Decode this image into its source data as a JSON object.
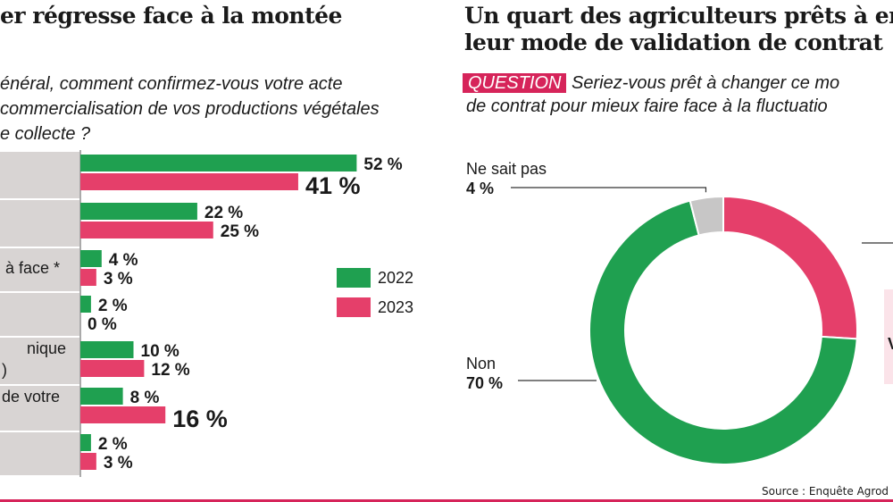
{
  "left_panel": {
    "title": "er régresse face à la montée",
    "question_lines": [
      "énéral, comment confirmez-vous votre acte",
      "commercialisation de vos productions végétales",
      "e collecte ?"
    ],
    "category_labels": [
      "",
      "",
      "à face *",
      "",
      "nique",
      ")",
      "de votre",
      ""
    ]
  },
  "right_panel": {
    "title_lines": [
      "Un quart des agriculteurs prêts à enco",
      "leur mode de validation de contrat"
    ],
    "question_tag": "QUESTION",
    "question_lines": [
      "Seriez-vous prêt à changer ce mo",
      "de contrat pour mieux faire face à la fluctuatio"
    ],
    "label_ne_sait_pas": "Ne sait pas",
    "label_ne_sait_pas_value": "4 %",
    "label_non": "Non",
    "label_non_value": "70 %",
    "partial_label": "V"
  },
  "source": "Source : Enquête Agrod",
  "colors": {
    "green": "#1fa050",
    "pink": "#e53f6a",
    "grey": "#c7c6c6",
    "accent": "#d6245a",
    "category_bg": "#d8d4d3"
  },
  "chart_data": [
    {
      "type": "bar",
      "orientation": "horizontal",
      "series": [
        {
          "name": "2022",
          "values": [
            52,
            22,
            4,
            2,
            10,
            8,
            2
          ]
        },
        {
          "name": "2023",
          "values": [
            41,
            25,
            3,
            0,
            12,
            16,
            3
          ]
        }
      ],
      "value_labels": {
        "2022": [
          "52 %",
          "22 %",
          "4 %",
          "2 %",
          "10 %",
          "8 %",
          "2 %"
        ],
        "2023": [
          "41 %",
          "25 %",
          "3 %",
          "0 %",
          "12 %",
          "16 %",
          "3 %"
        ]
      },
      "legend": [
        "2022",
        "2023"
      ],
      "legend_position": "right"
    },
    {
      "type": "pie",
      "donut": true,
      "slices": [
        {
          "label": "",
          "value": 26,
          "color": "#e53f6a"
        },
        {
          "label": "Non",
          "value": 70,
          "color": "#1fa050"
        },
        {
          "label": "Ne sait pas",
          "value": 4,
          "color": "#c7c6c6"
        }
      ]
    }
  ]
}
